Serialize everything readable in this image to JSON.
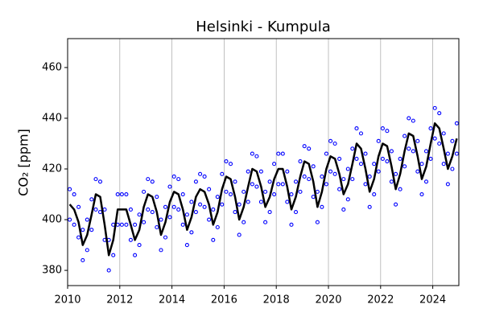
{
  "chart_data": {
    "type": "scatter",
    "title": "Helsinki - Kumpula",
    "y_label": "CO₂ [ppm]",
    "x": [
      2010.08,
      2010.25,
      2010.42,
      2010.58,
      2010.75,
      2010.92,
      2011.08,
      2011.25,
      2011.42,
      2011.58,
      2011.75,
      2011.92,
      2012.08,
      2012.25,
      2012.42,
      2012.58,
      2012.75,
      2012.92,
      2013.08,
      2013.25,
      2013.42,
      2013.58,
      2013.75,
      2013.92,
      2014.08,
      2014.25,
      2014.42,
      2014.58,
      2014.75,
      2014.92,
      2015.08,
      2015.25,
      2015.42,
      2015.58,
      2015.75,
      2015.92,
      2016.08,
      2016.25,
      2016.42,
      2016.58,
      2016.75,
      2016.92,
      2017.08,
      2017.25,
      2017.42,
      2017.58,
      2017.75,
      2017.92,
      2018.08,
      2018.25,
      2018.42,
      2018.58,
      2018.75,
      2018.92,
      2019.08,
      2019.25,
      2019.42,
      2019.58,
      2019.75,
      2019.92,
      2020.08,
      2020.25,
      2020.42,
      2020.58,
      2020.75,
      2020.92,
      2021.08,
      2021.25,
      2021.42,
      2021.58,
      2021.75,
      2021.92,
      2022.08,
      2022.25,
      2022.42,
      2022.58,
      2022.75,
      2022.92,
      2023.08,
      2023.25,
      2023.42,
      2023.58,
      2023.75,
      2023.92,
      2024.08,
      2024.25,
      2024.42,
      2024.58,
      2024.75,
      2024.92
    ],
    "series": [
      {
        "mode": "markers",
        "color": "#0000ff",
        "values": [
          412,
          410,
          405,
          396,
          400,
          408,
          416,
          415,
          404,
          392,
          398,
          410,
          410,
          410,
          404,
          398,
          402,
          411,
          416,
          415,
          409,
          400,
          405,
          413,
          417,
          416,
          410,
          402,
          407,
          415,
          418,
          417,
          412,
          404,
          409,
          418,
          423,
          422,
          415,
          406,
          411,
          419,
          426,
          425,
          419,
          411,
          415,
          422,
          426,
          426,
          419,
          410,
          415,
          423,
          429,
          428,
          421,
          411,
          417,
          426,
          431,
          430,
          424,
          416,
          420,
          428,
          436,
          434,
          426,
          417,
          422,
          431,
          436,
          435,
          427,
          418,
          424,
          433,
          440,
          439,
          431,
          422,
          427,
          436,
          444,
          442,
          434,
          426,
          431,
          438
        ]
      },
      {
        "mode": "markers",
        "color": "#0000ff",
        "values": [
          400,
          398,
          393,
          384,
          388,
          396,
          404,
          403,
          392,
          380,
          386,
          398,
          398,
          398,
          392,
          386,
          390,
          399,
          404,
          403,
          397,
          388,
          393,
          401,
          405,
          404,
          398,
          390,
          395,
          403,
          406,
          405,
          400,
          392,
          397,
          406,
          411,
          410,
          403,
          394,
          399,
          407,
          414,
          413,
          407,
          399,
          403,
          410,
          414,
          414,
          407,
          398,
          403,
          411,
          417,
          416,
          409,
          399,
          405,
          414,
          419,
          418,
          412,
          404,
          408,
          416,
          424,
          422,
          414,
          405,
          410,
          419,
          424,
          423,
          415,
          406,
          412,
          421,
          428,
          427,
          419,
          410,
          415,
          424,
          432,
          430,
          422,
          414,
          420,
          426
        ]
      },
      {
        "mode": "line",
        "color": "#000000",
        "values": [
          406,
          404,
          399,
          390,
          394,
          402,
          410,
          409,
          398,
          386,
          392,
          404,
          404,
          404,
          398,
          392,
          396,
          405,
          410,
          409,
          403,
          394,
          399,
          407,
          411,
          410,
          404,
          396,
          401,
          409,
          412,
          411,
          406,
          398,
          403,
          412,
          417,
          416,
          409,
          400,
          405,
          413,
          420,
          419,
          413,
          405,
          409,
          416,
          420,
          420,
          413,
          404,
          409,
          417,
          423,
          422,
          415,
          405,
          411,
          420,
          425,
          424,
          418,
          410,
          414,
          422,
          430,
          428,
          420,
          411,
          416,
          425,
          430,
          429,
          421,
          412,
          418,
          427,
          434,
          433,
          425,
          416,
          421,
          430,
          438,
          436,
          428,
          420,
          425,
          432
        ]
      }
    ],
    "xlim": [
      2010,
      2025
    ],
    "xticks": [
      2010,
      2012,
      2014,
      2016,
      2018,
      2020,
      2022,
      2024
    ],
    "ylim": [
      374,
      471.4
    ],
    "yticks": [
      380,
      400,
      420,
      440,
      460
    ],
    "grid": "x"
  }
}
